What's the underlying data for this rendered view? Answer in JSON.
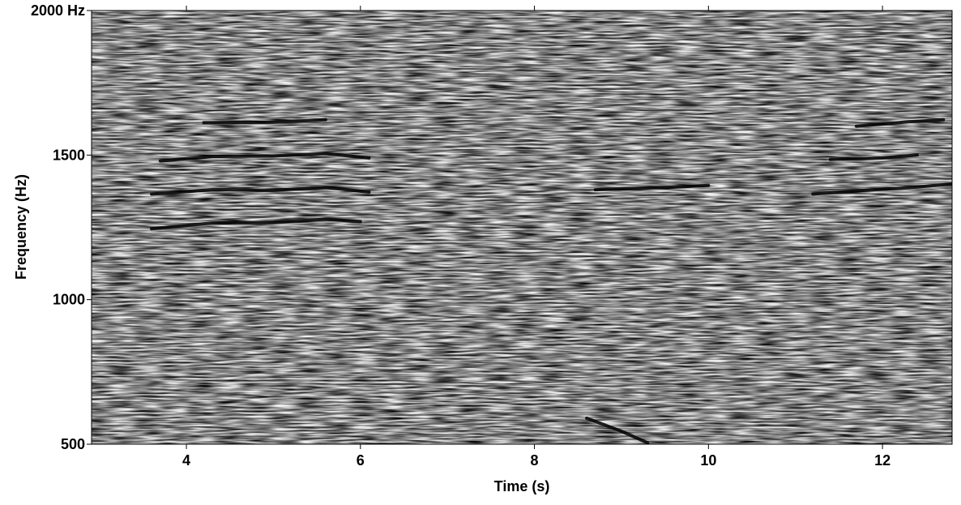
{
  "chart_data": {
    "type": "spectrogram",
    "xlabel": "Time (s)",
    "ylabel": "Frequency (Hz)",
    "xlim": [
      2.91,
      12.8
    ],
    "ylim": [
      500,
      2000
    ],
    "xticks": [
      4,
      6,
      8,
      10,
      12
    ],
    "yticks": [
      500,
      1000,
      1500,
      {
        "value": 2000,
        "label": "2000 Hz"
      }
    ],
    "color": "#000000",
    "series": [
      {
        "x": [
          3.6,
          4.3,
          5.0,
          5.6,
          6.0
        ],
        "values": [
          1245,
          1265,
          1268,
          1278,
          1270
        ]
      },
      {
        "x": [
          3.6,
          4.3,
          5.0,
          5.6,
          6.1
        ],
        "values": [
          1365,
          1380,
          1378,
          1388,
          1372
        ]
      },
      {
        "x": [
          3.7,
          4.3,
          5.0,
          5.6,
          6.1
        ],
        "values": [
          1480,
          1495,
          1497,
          1505,
          1490
        ]
      },
      {
        "x": [
          4.2,
          5.0,
          5.6
        ],
        "values": [
          1612,
          1614,
          1622
        ]
      },
      {
        "x": [
          8.7,
          9.5,
          10.0
        ],
        "values": [
          1380,
          1388,
          1395
        ]
      },
      {
        "x": [
          11.2,
          11.8,
          12.3,
          12.8
        ],
        "values": [
          1365,
          1378,
          1387,
          1400
        ]
      },
      {
        "x": [
          11.4,
          12.0,
          12.4
        ],
        "values": [
          1485,
          1490,
          1500
        ]
      },
      {
        "x": [
          11.7,
          12.3,
          12.7
        ],
        "values": [
          1600,
          1615,
          1622
        ]
      },
      {
        "x": [
          8.6,
          9.0,
          9.3
        ],
        "values": [
          590,
          545,
          505
        ]
      }
    ]
  }
}
